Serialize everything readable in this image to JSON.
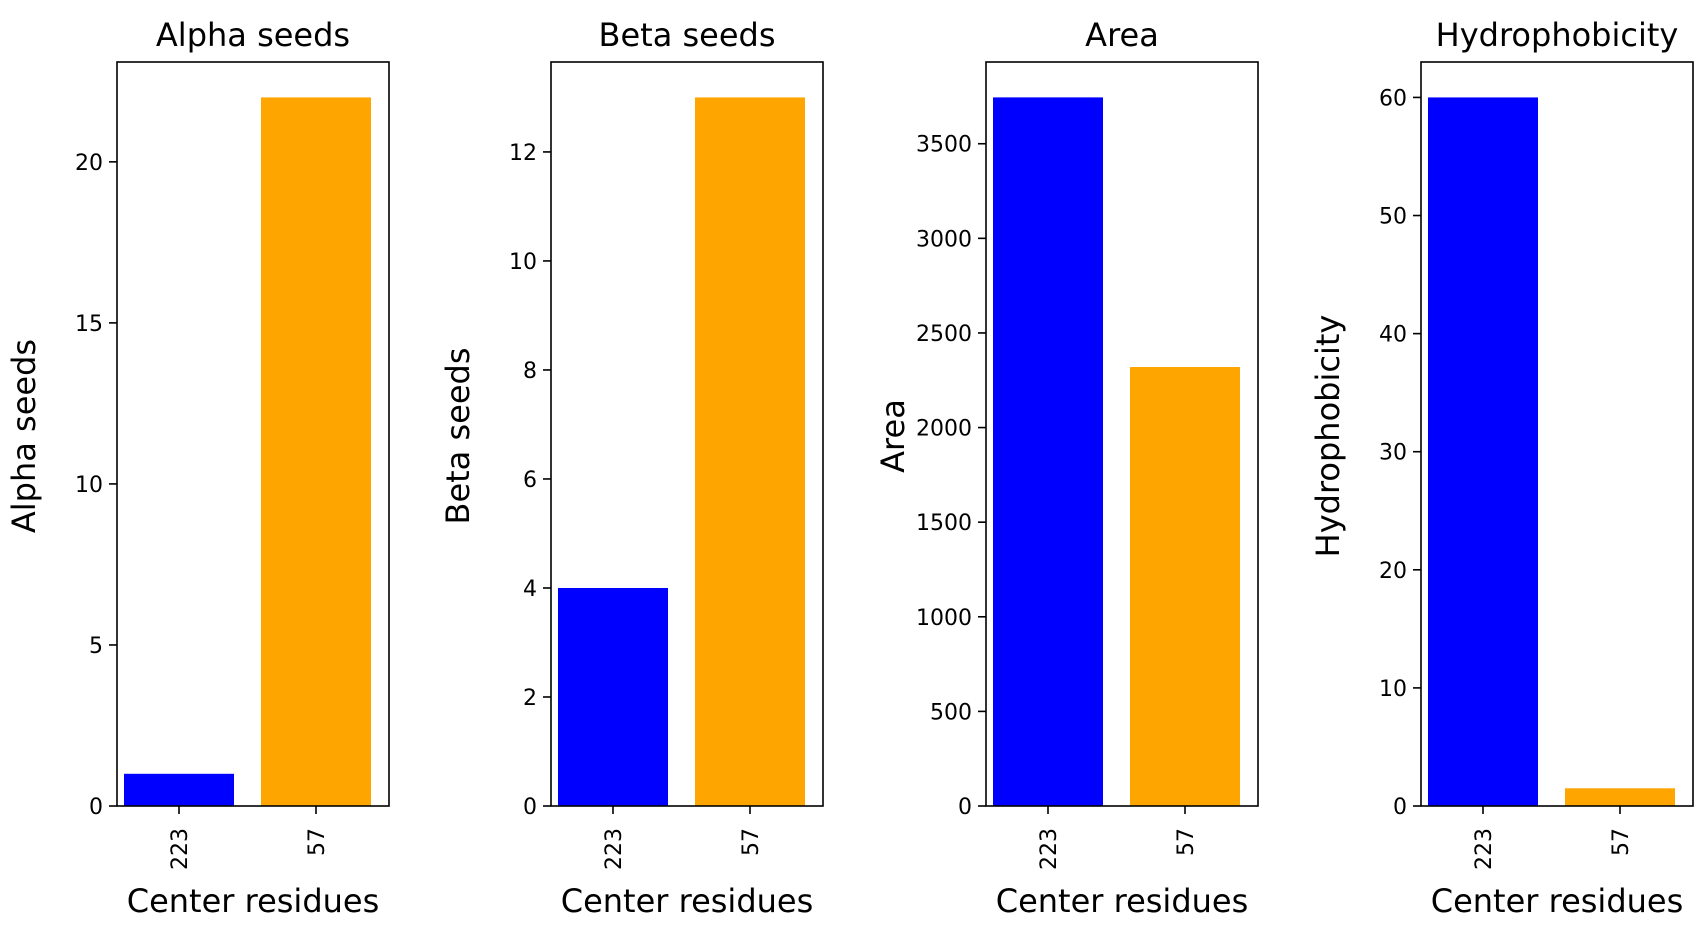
{
  "chart_data": [
    {
      "type": "bar",
      "title": "Alpha seeds",
      "xlabel": "Center residues",
      "ylabel": "Alpha seeds",
      "categories": [
        "223",
        "57"
      ],
      "values": [
        1,
        22
      ],
      "bar_colors": [
        "#0000ff",
        "#ffa500"
      ],
      "ylim": [
        0,
        23.1
      ],
      "yticks": [
        0,
        5,
        10,
        15,
        20
      ],
      "grid": false,
      "legend": "none"
    },
    {
      "type": "bar",
      "title": "Beta seeds",
      "xlabel": "Center residues",
      "ylabel": "Beta seeds",
      "categories": [
        "223",
        "57"
      ],
      "values": [
        4,
        13
      ],
      "bar_colors": [
        "#0000ff",
        "#ffa500"
      ],
      "ylim": [
        0,
        13.65
      ],
      "yticks": [
        0,
        2,
        4,
        6,
        8,
        10,
        12
      ],
      "grid": false,
      "legend": "none"
    },
    {
      "type": "bar",
      "title": "Area",
      "xlabel": "Center residues",
      "ylabel": "Area",
      "categories": [
        "223",
        "57"
      ],
      "values": [
        3745,
        2320
      ],
      "bar_colors": [
        "#0000ff",
        "#ffa500"
      ],
      "ylim": [
        0,
        3932
      ],
      "yticks": [
        0,
        500,
        1000,
        1500,
        2000,
        2500,
        3000,
        3500
      ],
      "grid": false,
      "legend": "none"
    },
    {
      "type": "bar",
      "title": "Hydrophobicity",
      "xlabel": "Center residues",
      "ylabel": "Hydrophobicity",
      "categories": [
        "223",
        "57"
      ],
      "values": [
        60,
        1.5
      ],
      "bar_colors": [
        "#0000ff",
        "#ffa500"
      ],
      "ylim": [
        0,
        63
      ],
      "yticks": [
        0,
        10,
        20,
        30,
        40,
        50,
        60
      ],
      "grid": false,
      "legend": "none"
    }
  ]
}
